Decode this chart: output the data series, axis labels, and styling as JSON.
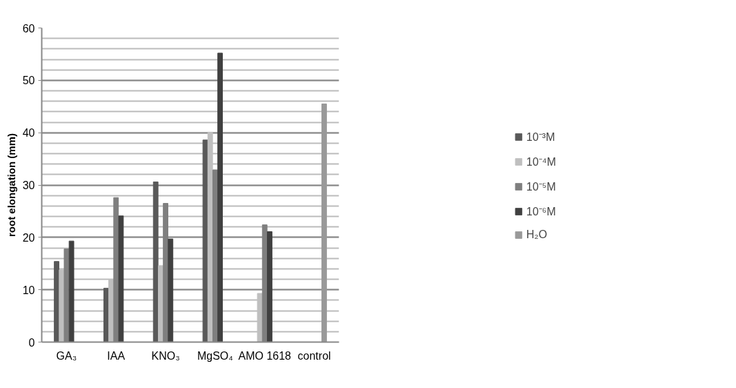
{
  "chart_data": {
    "type": "bar",
    "ylabel": "root elongation (mm)",
    "categories": [
      "GA₃",
      "IAA",
      "KNO₃",
      "MgSO₄",
      "AMO 1618",
      "control"
    ],
    "series": [
      {
        "name": "10⁻³M",
        "color": "#595959",
        "values": [
          15.4,
          10.3,
          30.6,
          38.6,
          null,
          null
        ]
      },
      {
        "name": "10⁻⁴M",
        "color": "#bfbfbf",
        "values": [
          13.8,
          12.0,
          14.6,
          40.1,
          9.3,
          null
        ]
      },
      {
        "name": "10⁻⁵M",
        "color": "#7f7f7f",
        "values": [
          17.8,
          27.6,
          26.5,
          32.9,
          22.4,
          null
        ]
      },
      {
        "name": "10⁻⁶M",
        "color": "#404040",
        "values": [
          19.3,
          24.1,
          19.7,
          55.2,
          21.1,
          null
        ]
      },
      {
        "name": "H₂O",
        "color": "#999999",
        "values": [
          null,
          null,
          null,
          null,
          null,
          45.5
        ]
      }
    ],
    "ylim": [
      0,
      60
    ],
    "yticks": [
      0,
      10,
      20,
      30,
      40,
      50,
      60
    ],
    "grid": "y",
    "legend": "right"
  }
}
